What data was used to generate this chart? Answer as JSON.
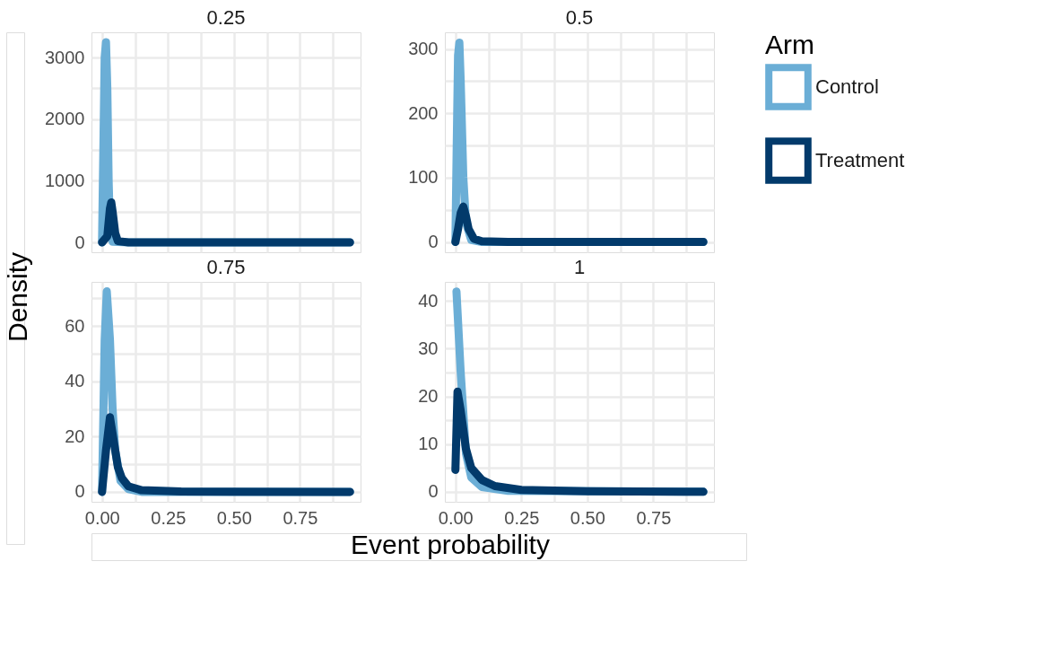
{
  "chart_data": [
    {
      "type": "line",
      "title": "0.25",
      "ylabel": "Density",
      "legend_title": "Arm",
      "legend": "right",
      "grid": true,
      "tick_labels": "y",
      "line_style": "solid",
      "marker": "none",
      "xlim": [
        -0.04,
        0.98
      ],
      "xticks": [
        {
          "value": 0,
          "label": "0.00"
        },
        {
          "value": 0.125,
          "label": null
        },
        {
          "value": 0.25,
          "label": "0.25"
        },
        {
          "value": 0.375,
          "label": null
        },
        {
          "value": 0.5,
          "label": "0.50"
        },
        {
          "value": 0.625,
          "label": null
        },
        {
          "value": 0.75,
          "label": "0.75"
        },
        {
          "value": 0.875,
          "label": null
        }
      ],
      "ylim": [
        -160,
        3410
      ],
      "yticks": [
        0,
        {
          "value": 500,
          "label": null
        },
        1000,
        {
          "value": 1500,
          "label": null
        },
        2000,
        {
          "value": 2500,
          "label": null
        },
        3000
      ],
      "series": [
        {
          "name": "Control",
          "color": "#6baed6",
          "x": [
            0,
            0.005,
            0.01,
            0.015,
            0.02,
            0.025,
            0.03,
            0.04,
            0.1,
            0.94
          ],
          "values": [
            0,
            1500,
            3000,
            3250,
            2500,
            1000,
            200,
            10,
            0,
            0
          ]
        },
        {
          "name": "Treatment",
          "color": "#023a6b",
          "x": [
            0,
            0.02,
            0.03,
            0.035,
            0.04,
            0.05,
            0.06,
            0.1,
            0.94
          ],
          "values": [
            0,
            100,
            550,
            650,
            500,
            150,
            20,
            0,
            0
          ]
        }
      ]
    },
    {
      "type": "line",
      "title": "0.5",
      "legend": "right",
      "grid": true,
      "tick_labels": "y",
      "line_style": "solid",
      "marker": "none",
      "xlim": [
        -0.04,
        0.98
      ],
      "xticks": [
        {
          "value": 0,
          "label": "0.00"
        },
        {
          "value": 0.125,
          "label": null
        },
        {
          "value": 0.25,
          "label": "0.25"
        },
        {
          "value": 0.375,
          "label": null
        },
        {
          "value": 0.5,
          "label": "0.50"
        },
        {
          "value": 0.625,
          "label": null
        },
        {
          "value": 0.75,
          "label": "0.75"
        },
        {
          "value": 0.875,
          "label": null
        }
      ],
      "ylim": [
        -16,
        326
      ],
      "yticks": [
        0,
        {
          "value": 50,
          "label": null
        },
        100,
        {
          "value": 150,
          "label": null
        },
        200,
        {
          "value": 250,
          "label": null
        },
        300
      ],
      "series": [
        {
          "name": "Control",
          "color": "#6baed6",
          "x": [
            0,
            0.005,
            0.01,
            0.015,
            0.02,
            0.03,
            0.04,
            0.06,
            0.1,
            0.94
          ],
          "values": [
            0,
            150,
            290,
            310,
            250,
            100,
            30,
            3,
            0,
            0
          ]
        },
        {
          "name": "Treatment",
          "color": "#023a6b",
          "x": [
            0,
            0.01,
            0.02,
            0.03,
            0.04,
            0.05,
            0.07,
            0.1,
            0.2,
            0.94
          ],
          "values": [
            0,
            20,
            45,
            55,
            40,
            20,
            5,
            1,
            0,
            0
          ]
        }
      ]
    },
    {
      "type": "line",
      "title": "0.75",
      "xlabel": "Event probability",
      "legend": "right",
      "grid": true,
      "line_style": "solid",
      "marker": "none",
      "xlim": [
        -0.04,
        0.98
      ],
      "xticks": [
        {
          "value": 0,
          "label": "0.00"
        },
        {
          "value": 0.125,
          "label": null
        },
        {
          "value": 0.25,
          "label": "0.25"
        },
        {
          "value": 0.375,
          "label": null
        },
        {
          "value": 0.5,
          "label": "0.50"
        },
        {
          "value": 0.625,
          "label": null
        },
        {
          "value": 0.75,
          "label": "0.75"
        },
        {
          "value": 0.875,
          "label": null
        }
      ],
      "ylim": [
        -3.6,
        76
      ],
      "yticks": [
        0,
        {
          "value": 10,
          "label": null
        },
        20,
        {
          "value": 30,
          "label": null
        },
        40,
        {
          "value": 50,
          "label": null
        },
        60,
        {
          "value": 70,
          "label": null
        }
      ],
      "series": [
        {
          "name": "Control",
          "color": "#6baed6",
          "x": [
            0,
            0.01,
            0.018,
            0.03,
            0.04,
            0.05,
            0.07,
            0.1,
            0.15,
            0.94
          ],
          "values": [
            0,
            55,
            72.6,
            55,
            30,
            15,
            4,
            1,
            0,
            0
          ]
        },
        {
          "name": "Treatment",
          "color": "#023a6b",
          "x": [
            0,
            0.015,
            0.03,
            0.045,
            0.06,
            0.075,
            0.1,
            0.15,
            0.3,
            0.94
          ],
          "values": [
            0,
            15,
            27,
            18,
            9,
            5,
            2,
            0.6,
            0.1,
            0
          ]
        }
      ]
    },
    {
      "type": "line",
      "title": "1",
      "legend": "right",
      "grid": true,
      "line_style": "solid",
      "marker": "none",
      "xlim": [
        -0.04,
        0.98
      ],
      "xticks": [
        {
          "value": 0,
          "label": "0.00"
        },
        {
          "value": 0.125,
          "label": null
        },
        {
          "value": 0.25,
          "label": "0.25"
        },
        {
          "value": 0.375,
          "label": null
        },
        {
          "value": 0.5,
          "label": "0.50"
        },
        {
          "value": 0.625,
          "label": null
        },
        {
          "value": 0.75,
          "label": "0.75"
        },
        {
          "value": 0.875,
          "label": null
        }
      ],
      "ylim": [
        -2.1,
        44
      ],
      "yticks": [
        0,
        {
          "value": 5,
          "label": null
        },
        10,
        {
          "value": 15,
          "label": null
        },
        20,
        {
          "value": 25,
          "label": null
        },
        30,
        {
          "value": 35,
          "label": null
        },
        40
      ],
      "series": [
        {
          "name": "Control",
          "color": "#6baed6",
          "x": [
            0.004,
            0.02,
            0.04,
            0.06,
            0.1,
            0.2,
            0.94
          ],
          "values": [
            42,
            25,
            8,
            3,
            1,
            0.2,
            0
          ]
        },
        {
          "name": "Treatment",
          "color": "#023a6b",
          "x": [
            0,
            0.008,
            0.02,
            0.04,
            0.06,
            0.1,
            0.15,
            0.25,
            0.5,
            0.94
          ],
          "values": [
            4.6,
            21,
            17,
            9,
            5,
            2.5,
            1.2,
            0.4,
            0.1,
            0
          ]
        }
      ]
    }
  ]
}
